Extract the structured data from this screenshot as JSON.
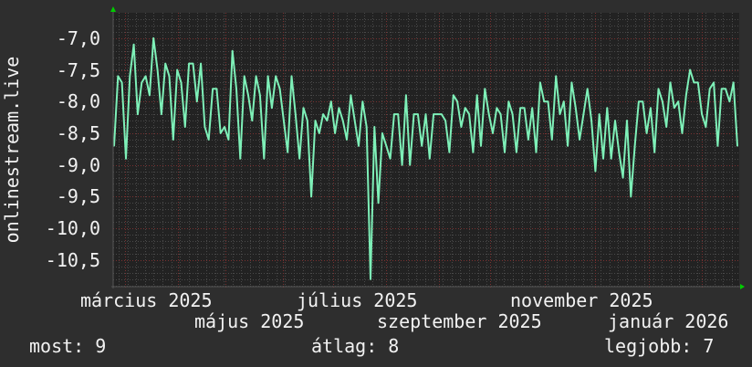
{
  "chart_data": {
    "type": "line",
    "title": "",
    "ylabel": "onlinestream.live",
    "ylim": [
      -10.92,
      -6.6
    ],
    "yticks": [
      -7.0,
      -7.5,
      -8.0,
      -8.5,
      -9.0,
      -9.5,
      -10.0,
      -10.5
    ],
    "ytick_labels": [
      "-7,0",
      "-7,5",
      "-8,0",
      "-8,5",
      "-9,0",
      "-9,5",
      "-10,0",
      "-10,5"
    ],
    "xtick_labels": [
      "március 2025",
      "május 2025",
      "július 2025",
      "szeptember 2025",
      "november 2025",
      "január 2026"
    ],
    "grid": true,
    "line_color": "#7ef0b8",
    "values": [
      -8.7,
      -7.6,
      -7.7,
      -8.9,
      -7.6,
      -7.1,
      -8.2,
      -7.7,
      -7.6,
      -7.9,
      -7.0,
      -7.5,
      -8.2,
      -7.4,
      -7.6,
      -8.6,
      -7.5,
      -7.7,
      -8.4,
      -7.4,
      -7.4,
      -8.0,
      -7.4,
      -8.4,
      -8.6,
      -7.8,
      -7.8,
      -8.5,
      -8.4,
      -8.6,
      -7.2,
      -7.8,
      -8.9,
      -7.6,
      -7.9,
      -8.3,
      -7.6,
      -7.9,
      -8.9,
      -7.6,
      -8.1,
      -7.6,
      -7.8,
      -8.3,
      -8.8,
      -7.6,
      -8.2,
      -8.9,
      -8.1,
      -8.3,
      -9.5,
      -8.3,
      -8.5,
      -8.2,
      -8.3,
      -8.0,
      -8.5,
      -8.1,
      -8.3,
      -8.6,
      -7.9,
      -8.3,
      -8.7,
      -8.0,
      -8.4,
      -10.8,
      -8.4,
      -9.6,
      -8.5,
      -8.7,
      -8.9,
      -8.2,
      -8.2,
      -9.0,
      -7.9,
      -9.0,
      -8.2,
      -8.2,
      -8.7,
      -8.2,
      -8.9,
      -8.2,
      -8.2,
      -8.2,
      -8.3,
      -8.8,
      -7.9,
      -8.0,
      -8.4,
      -8.1,
      -8.2,
      -8.8,
      -7.9,
      -8.7,
      -7.8,
      -8.2,
      -8.5,
      -8.1,
      -8.2,
      -8.8,
      -8.0,
      -8.2,
      -8.8,
      -8.1,
      -8.1,
      -8.6,
      -8.1,
      -8.8,
      -7.7,
      -8.0,
      -8.0,
      -8.6,
      -7.6,
      -8.2,
      -8.0,
      -8.7,
      -7.7,
      -8.1,
      -8.6,
      -8.2,
      -7.8,
      -8.3,
      -9.1,
      -8.2,
      -8.9,
      -8.1,
      -8.9,
      -8.3,
      -8.8,
      -9.2,
      -8.3,
      -9.5,
      -8.7,
      -8.0,
      -8.0,
      -8.5,
      -8.1,
      -8.8,
      -7.8,
      -8.0,
      -8.4,
      -7.7,
      -8.1,
      -8.0,
      -8.5,
      -7.9,
      -7.5,
      -7.7,
      -7.7,
      -8.2,
      -8.4,
      -7.8,
      -7.7,
      -8.7,
      -7.8,
      -7.8,
      -8.0,
      -7.7,
      -8.7
    ]
  },
  "legend": {
    "current": "most: 9",
    "average": "átlag: 8",
    "best": "legjobb: 7"
  }
}
